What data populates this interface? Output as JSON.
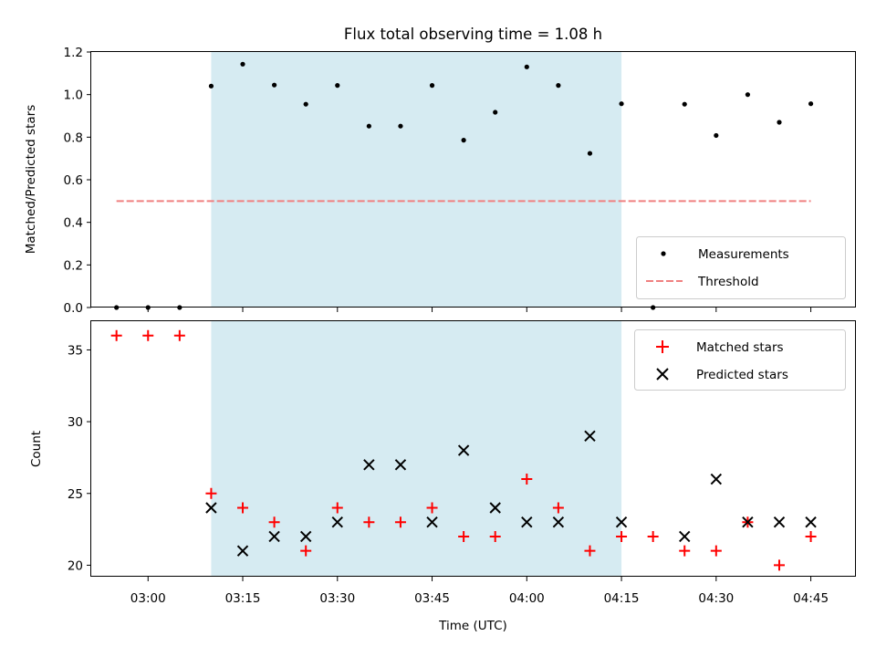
{
  "chart_data": [
    {
      "type": "scatter",
      "title": "Flux total observing time = 1.08 h",
      "xlabel": "",
      "ylabel": "Matched/Predicted stars",
      "ylim": [
        0,
        1.2
      ],
      "yticks": [
        "0.0",
        "0.2",
        "0.4",
        "0.6",
        "0.8",
        "1.0",
        "1.2"
      ],
      "shaded_interval": [
        "03:10",
        "04:15"
      ],
      "legend_position": "lower right",
      "series": [
        {
          "name": "Measurements",
          "marker": "dot",
          "color": "#000000",
          "points": [
            {
              "x": "02:55",
              "y": 0.0
            },
            {
              "x": "03:00",
              "y": 0.0
            },
            {
              "x": "03:05",
              "y": 0.0
            },
            {
              "x": "03:10",
              "y": 1.04
            },
            {
              "x": "03:15",
              "y": 1.143
            },
            {
              "x": "03:20",
              "y": 1.045
            },
            {
              "x": "03:25",
              "y": 0.955
            },
            {
              "x": "03:30",
              "y": 1.043
            },
            {
              "x": "03:35",
              "y": 0.852
            },
            {
              "x": "03:40",
              "y": 0.852
            },
            {
              "x": "03:45",
              "y": 1.043
            },
            {
              "x": "03:50",
              "y": 0.786
            },
            {
              "x": "03:55",
              "y": 0.917
            },
            {
              "x": "04:00",
              "y": 1.13
            },
            {
              "x": "04:05",
              "y": 1.043
            },
            {
              "x": "04:10",
              "y": 0.724
            },
            {
              "x": "04:15",
              "y": 0.957
            },
            {
              "x": "04:20",
              "y": 0.0
            },
            {
              "x": "04:25",
              "y": 0.955
            },
            {
              "x": "04:30",
              "y": 0.808
            },
            {
              "x": "04:35",
              "y": 1.0
            },
            {
              "x": "04:40",
              "y": 0.87
            },
            {
              "x": "04:45",
              "y": 0.957
            }
          ]
        },
        {
          "name": "Threshold",
          "marker": "dashed-line",
          "color": "#f08080",
          "points": [
            {
              "x": "02:55",
              "y": 0.5
            },
            {
              "x": "04:45",
              "y": 0.5
            }
          ]
        }
      ]
    },
    {
      "type": "scatter",
      "title": "",
      "xlabel": "Time (UTC)",
      "ylabel": "Count",
      "ylim": [
        19.2,
        37.0
      ],
      "yticks": [
        "20",
        "25",
        "30",
        "35"
      ],
      "xticks": [
        "03:00",
        "03:15",
        "03:30",
        "03:45",
        "04:00",
        "04:15",
        "04:30",
        "04:45"
      ],
      "xlim": [
        "02:51",
        "04:52"
      ],
      "shaded_interval": [
        "03:10",
        "04:15"
      ],
      "legend_position": "upper right",
      "series": [
        {
          "name": "Matched stars",
          "marker": "plus",
          "color": "#ff0000",
          "points": [
            {
              "x": "02:55",
              "y": 36
            },
            {
              "x": "03:00",
              "y": 36
            },
            {
              "x": "03:05",
              "y": 36
            },
            {
              "x": "03:10",
              "y": 25
            },
            {
              "x": "03:15",
              "y": 24
            },
            {
              "x": "03:20",
              "y": 23
            },
            {
              "x": "03:25",
              "y": 21
            },
            {
              "x": "03:30",
              "y": 24
            },
            {
              "x": "03:35",
              "y": 23
            },
            {
              "x": "03:40",
              "y": 23
            },
            {
              "x": "03:45",
              "y": 24
            },
            {
              "x": "03:50",
              "y": 22
            },
            {
              "x": "03:55",
              "y": 22
            },
            {
              "x": "04:00",
              "y": 26
            },
            {
              "x": "04:05",
              "y": 24
            },
            {
              "x": "04:10",
              "y": 21
            },
            {
              "x": "04:15",
              "y": 22
            },
            {
              "x": "04:20",
              "y": 22
            },
            {
              "x": "04:25",
              "y": 21
            },
            {
              "x": "04:30",
              "y": 21
            },
            {
              "x": "04:35",
              "y": 23
            },
            {
              "x": "04:40",
              "y": 20
            },
            {
              "x": "04:45",
              "y": 22
            }
          ]
        },
        {
          "name": "Predicted stars",
          "marker": "x",
          "color": "#000000",
          "points": [
            {
              "x": "03:10",
              "y": 24
            },
            {
              "x": "03:15",
              "y": 21
            },
            {
              "x": "03:20",
              "y": 22
            },
            {
              "x": "03:25",
              "y": 22
            },
            {
              "x": "03:30",
              "y": 23
            },
            {
              "x": "03:35",
              "y": 27
            },
            {
              "x": "03:40",
              "y": 27
            },
            {
              "x": "03:45",
              "y": 23
            },
            {
              "x": "03:50",
              "y": 28
            },
            {
              "x": "03:55",
              "y": 24
            },
            {
              "x": "04:00",
              "y": 23
            },
            {
              "x": "04:05",
              "y": 23
            },
            {
              "x": "04:10",
              "y": 29
            },
            {
              "x": "04:15",
              "y": 23
            },
            {
              "x": "04:25",
              "y": 22
            },
            {
              "x": "04:30",
              "y": 26
            },
            {
              "x": "04:35",
              "y": 23
            },
            {
              "x": "04:40",
              "y": 23
            },
            {
              "x": "04:45",
              "y": 23
            }
          ]
        }
      ]
    }
  ]
}
